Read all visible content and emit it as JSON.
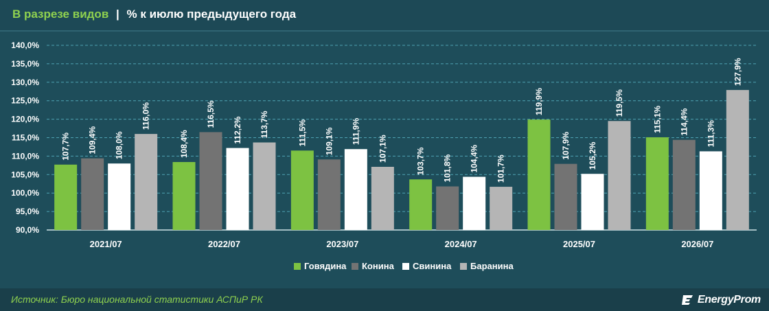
{
  "header": {
    "title_accent": "В разрезе видов",
    "title_separator": "|",
    "title_rest": "% к июлю предыдущего года"
  },
  "footer": {
    "source": "Источник: Бюро национальной статистики АСПиР РК",
    "logo_text": "EnergyProm",
    "logo_icon": "energyprom-logo-icon"
  },
  "colors": {
    "background": "#1e4d5a",
    "grid": "#4fa3b3",
    "accent": "#8fd14f",
    "Говядина": "#7dc242",
    "Конина": "#737373",
    "Свинина": "#ffffff",
    "Баранина": "#b5b5b5"
  },
  "chart_data": {
    "type": "bar",
    "categories": [
      "2021/07",
      "2022/07",
      "2023/07",
      "2024/07",
      "2025/07",
      "2026/07"
    ],
    "series": [
      {
        "name": "Говядина",
        "values": [
          107.7,
          108.4,
          111.5,
          103.7,
          119.9,
          115.1
        ],
        "labels": [
          "107,7%",
          "108,4%",
          "111,5%",
          "103,7%",
          "119,9%",
          "115,1%"
        ]
      },
      {
        "name": "Конина",
        "values": [
          109.4,
          116.5,
          109.1,
          101.8,
          107.9,
          114.4
        ],
        "labels": [
          "109,4%",
          "116,5%",
          "109,1%",
          "101,8%",
          "107,9%",
          "114,4%"
        ]
      },
      {
        "name": "Свинина",
        "values": [
          108.0,
          112.2,
          111.9,
          104.4,
          105.2,
          111.3
        ],
        "labels": [
          "108,0%",
          "112,2%",
          "111,9%",
          "104,4%",
          "105,2%",
          "111,3%"
        ]
      },
      {
        "name": "Баранина",
        "values": [
          116.0,
          113.7,
          107.1,
          101.7,
          119.5,
          127.9
        ],
        "labels": [
          "116,0%",
          "113,7%",
          "107,1%",
          "101,7%",
          "119,5%",
          "127,9%"
        ]
      }
    ],
    "y_ticks": [
      "90,0%",
      "95,0%",
      "100,0%",
      "105,0%",
      "110,0%",
      "115,0%",
      "120,0%",
      "125,0%",
      "130,0%",
      "135,0%",
      "140,0%"
    ],
    "ylim": [
      90,
      140
    ],
    "grid": true,
    "legend_position": "bottom-center"
  }
}
